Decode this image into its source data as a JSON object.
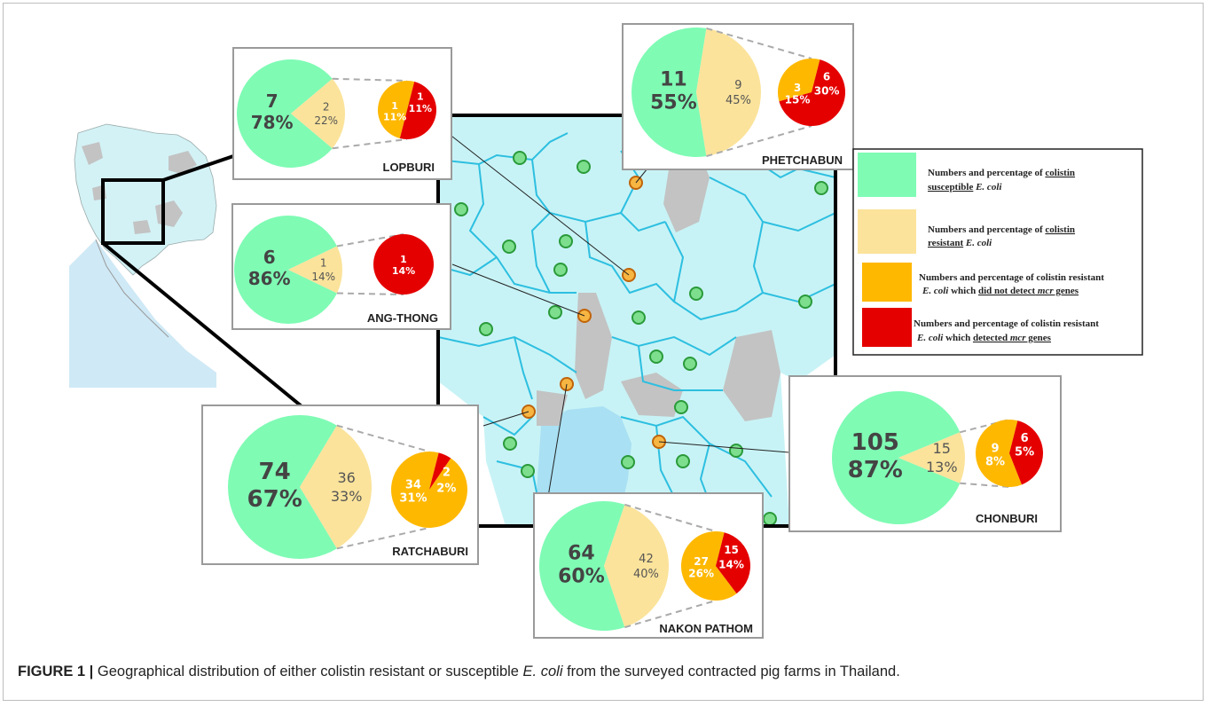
{
  "caption": {
    "label": "FIGURE 1 |",
    "text_before": " Geographical distribution of either colistin resistant or susceptible ",
    "species": "E. coli",
    "text_after": " from the surveyed contracted pig farms in Thailand."
  },
  "colors": {
    "susceptible": "#7ffbb4",
    "resistant": "#fbe39b",
    "no_mcr": "#ffb800",
    "mcr": "#e50000",
    "map_land": "#c8f3f6",
    "map_border": "#2dbfe0",
    "map_gray": "#c3c3c3",
    "sea": "#a9e0f3"
  },
  "legend": {
    "items": [
      {
        "key": "susceptible",
        "line1_a": "Numbers and percentage of ",
        "line1_u": "colistin",
        "line2_u": "susceptible",
        "line2_i": " E. coli"
      },
      {
        "key": "resistant",
        "line1_a": "Numbers and percentage of ",
        "line1_u": "colistin",
        "line2_u": "resistant",
        "line2_i": " E. coli"
      },
      {
        "key": "no_mcr",
        "line1_a": "Numbers and percentage of colistin resistant",
        "line2_i": "E. coli",
        "line2_b": " which ",
        "line2_u": "did not detect",
        "line2_c": " mcr",
        "line2_d": " genes"
      },
      {
        "key": "mcr",
        "line1_a": "Numbers and percentage of colistin resistant",
        "line2_i": "E. coli",
        "line2_b": " which ",
        "line2_u": "detected",
        "line2_c": " mcr",
        "line2_d": " genes"
      }
    ]
  },
  "chart_data": [
    {
      "type": "pie",
      "title": "LOPBURI",
      "main": {
        "susceptible": {
          "n": 7,
          "pct": "78%"
        },
        "resistant": {
          "n": 2,
          "pct": "22%"
        }
      },
      "sub": {
        "no_mcr": {
          "n": 1,
          "pct": "11%"
        },
        "mcr": {
          "n": 1,
          "pct": "11%"
        }
      }
    },
    {
      "type": "pie",
      "title": "ANG-THONG",
      "main": {
        "susceptible": {
          "n": 6,
          "pct": "86%"
        },
        "resistant": {
          "n": 1,
          "pct": "14%"
        }
      },
      "sub": {
        "no_mcr": {
          "n": 0,
          "pct": ""
        },
        "mcr": {
          "n": 1,
          "pct": "14%"
        }
      }
    },
    {
      "type": "pie",
      "title": "PHETCHABUN",
      "main": {
        "susceptible": {
          "n": 11,
          "pct": "55%"
        },
        "resistant": {
          "n": 9,
          "pct": "45%"
        }
      },
      "sub": {
        "no_mcr": {
          "n": 3,
          "pct": "15%"
        },
        "mcr": {
          "n": 6,
          "pct": "30%"
        }
      }
    },
    {
      "type": "pie",
      "title": "RATCHABURI",
      "main": {
        "susceptible": {
          "n": 74,
          "pct": "67%"
        },
        "resistant": {
          "n": 36,
          "pct": "33%"
        }
      },
      "sub": {
        "no_mcr": {
          "n": 34,
          "pct": "31%"
        },
        "mcr": {
          "n": 2,
          "pct": "2%"
        }
      }
    },
    {
      "type": "pie",
      "title": "NAKON PATHOM",
      "main": {
        "susceptible": {
          "n": 64,
          "pct": "60%"
        },
        "resistant": {
          "n": 42,
          "pct": "40%"
        }
      },
      "sub": {
        "no_mcr": {
          "n": 27,
          "pct": "26%"
        },
        "mcr": {
          "n": 15,
          "pct": "14%"
        }
      }
    },
    {
      "type": "pie",
      "title": "CHONBURI",
      "main": {
        "susceptible": {
          "n": 105,
          "pct": "87%"
        },
        "resistant": {
          "n": 15,
          "pct": "13%"
        }
      },
      "sub": {
        "no_mcr": {
          "n": 9,
          "pct": "8%"
        },
        "mcr": {
          "n": 6,
          "pct": "5%"
        }
      }
    }
  ]
}
